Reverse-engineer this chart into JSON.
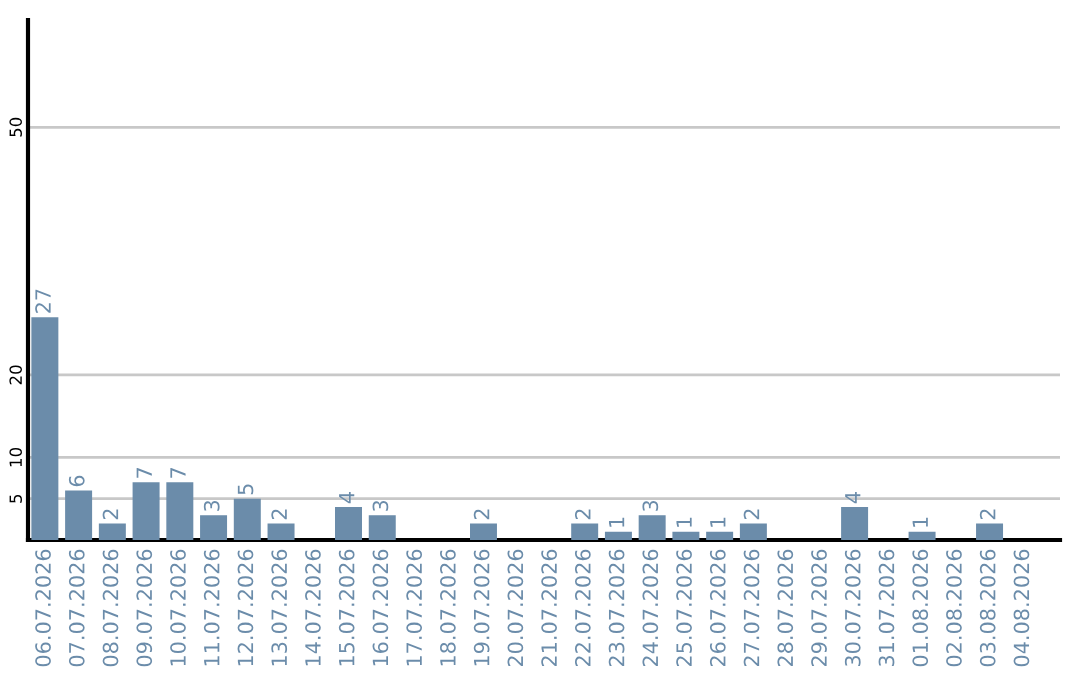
{
  "chart_data": {
    "type": "bar",
    "categories": [
      "06.07.2026",
      "07.07.2026",
      "08.07.2026",
      "09.07.2026",
      "10.07.2026",
      "11.07.2026",
      "12.07.2026",
      "13.07.2026",
      "14.07.2026",
      "15.07.2026",
      "16.07.2026",
      "17.07.2026",
      "18.07.2026",
      "19.07.2026",
      "20.07.2026",
      "21.07.2026",
      "22.07.2026",
      "23.07.2026",
      "24.07.2026",
      "25.07.2026",
      "26.07.2026",
      "27.07.2026",
      "28.07.2026",
      "29.07.2026",
      "30.07.2026",
      "31.07.2026",
      "01.08.2026",
      "02.08.2026",
      "03.08.2026",
      "04.08.2026"
    ],
    "values": [
      27,
      6,
      2,
      7,
      7,
      3,
      5,
      2,
      null,
      4,
      3,
      null,
      null,
      2,
      null,
      null,
      2,
      1,
      3,
      1,
      1,
      2,
      null,
      null,
      4,
      null,
      1,
      null,
      2,
      null
    ],
    "color": "#6b8caa",
    "ylim": [
      0,
      63
    ],
    "yticks": [
      5,
      10,
      20,
      50
    ],
    "grid": "y",
    "data_labels": true,
    "legend": false
  }
}
